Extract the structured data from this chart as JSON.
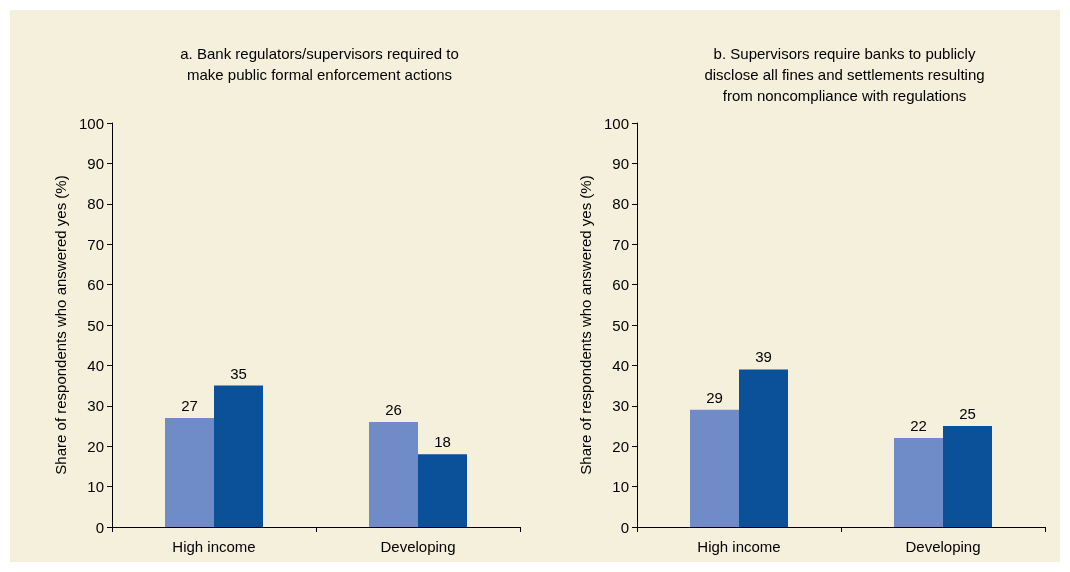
{
  "chart_data": [
    {
      "type": "bar",
      "title": "a. Bank regulators/supervisors required to\nmake public formal enforcement actions",
      "ylabel": "Share of respondents who answered yes (%)",
      "categories": [
        "High income",
        "Developing"
      ],
      "series": [
        {
          "color": "#6f8cc8",
          "values": [
            27,
            26
          ]
        },
        {
          "color": "#0b5199",
          "values": [
            35,
            18
          ]
        }
      ],
      "ylim": [
        0,
        100
      ],
      "yticks": [
        0,
        10,
        20,
        30,
        40,
        50,
        60,
        70,
        80,
        90,
        100
      ],
      "grid": false,
      "data_labels": true
    },
    {
      "type": "bar",
      "title": "b. Supervisors require banks to publicly\ndisclose all fines and settlements resulting\nfrom noncompliance with regulations",
      "ylabel": "Share of respondents who answered yes (%)",
      "categories": [
        "High income",
        "Developing"
      ],
      "series": [
        {
          "color": "#6f8cc8",
          "values": [
            29,
            22
          ]
        },
        {
          "color": "#0b5199",
          "values": [
            39,
            25
          ]
        }
      ],
      "ylim": [
        0,
        100
      ],
      "yticks": [
        0,
        10,
        20,
        30,
        40,
        50,
        60,
        70,
        80,
        90,
        100
      ],
      "grid": false,
      "data_labels": true
    }
  ]
}
